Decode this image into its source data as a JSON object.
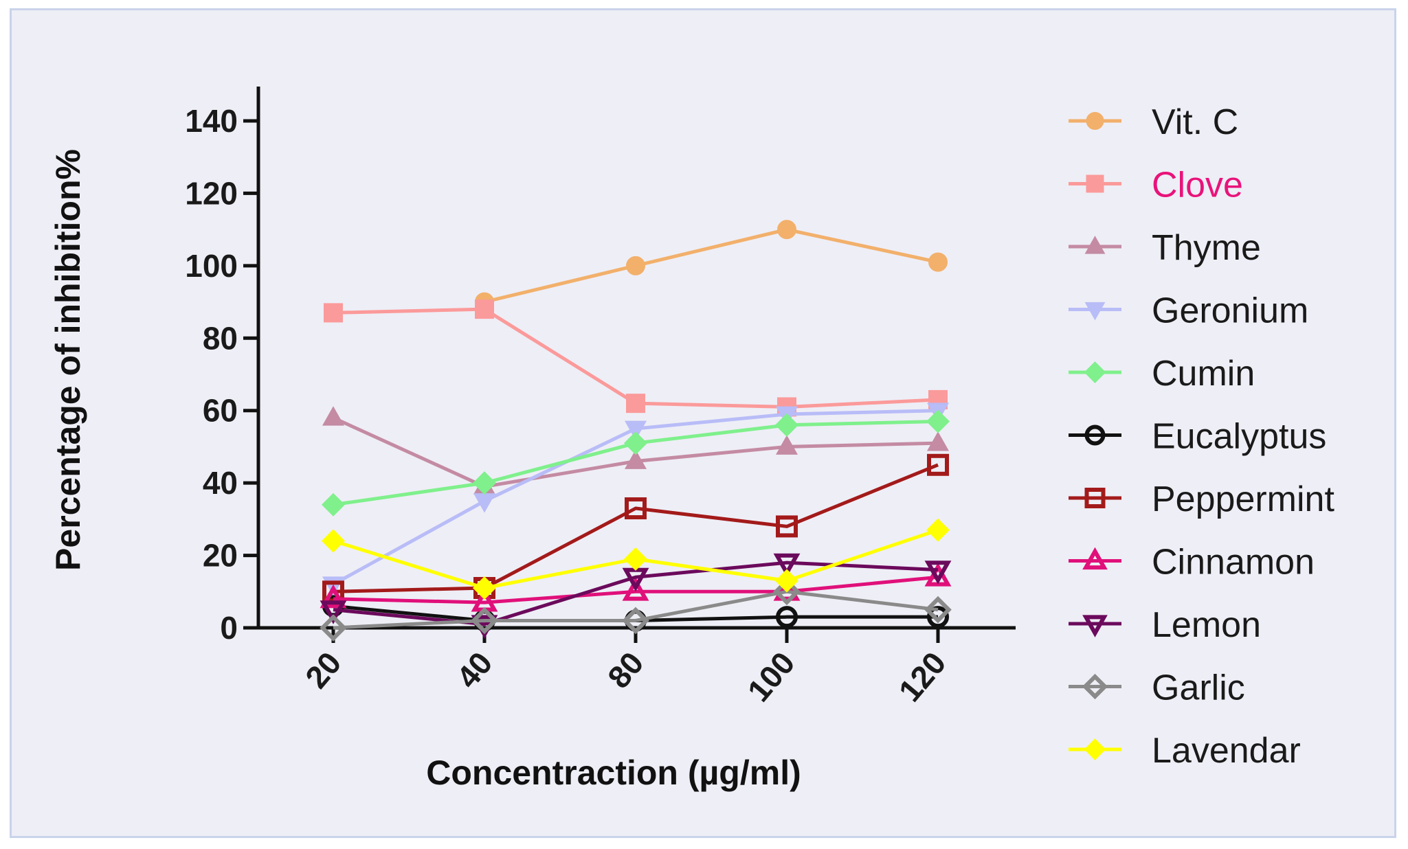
{
  "chart_data": {
    "type": "line",
    "title": "",
    "xlabel": "Concentraction (µg/ml)",
    "ylabel": "Percentage of inhibition%",
    "categories": [
      "20",
      "40",
      "80",
      "100",
      "120"
    ],
    "ylim": [
      0,
      140
    ],
    "yticks": [
      0,
      20,
      40,
      60,
      80,
      100,
      120,
      140
    ],
    "grid": false,
    "legend_position": "right",
    "series": [
      {
        "name": "Vit. C",
        "color": "#f2b06b",
        "marker": "circle",
        "filled": true,
        "label_color": "#1a1a1a",
        "values": [
          null,
          90,
          100,
          110,
          101
        ]
      },
      {
        "name": "Clove",
        "color": "#fb9a9a",
        "marker": "square",
        "filled": true,
        "label_color": "#e8137a",
        "values": [
          87,
          88,
          62,
          61,
          63
        ]
      },
      {
        "name": "Thyme",
        "color": "#c48ba3",
        "marker": "triangle",
        "filled": true,
        "label_color": "#1a1a1a",
        "values": [
          58,
          39,
          46,
          50,
          51
        ]
      },
      {
        "name": "Geronium",
        "color": "#b8bcf7",
        "marker": "triangle-down",
        "filled": true,
        "label_color": "#1a1a1a",
        "values": [
          12,
          35,
          55,
          59,
          60
        ]
      },
      {
        "name": "Cumin",
        "color": "#7ff08c",
        "marker": "diamond",
        "filled": true,
        "label_color": "#1a1a1a",
        "values": [
          34,
          40,
          51,
          56,
          57
        ]
      },
      {
        "name": "Eucalyptus",
        "color": "#111111",
        "marker": "circle",
        "filled": false,
        "label_color": "#1a1a1a",
        "values": [
          6,
          2,
          2,
          3,
          3
        ]
      },
      {
        "name": "Peppermint",
        "color": "#a31a1a",
        "marker": "square",
        "filled": false,
        "label_color": "#1a1a1a",
        "values": [
          10,
          11,
          33,
          28,
          45
        ]
      },
      {
        "name": "Cinnamon",
        "color": "#e0107a",
        "marker": "triangle",
        "filled": false,
        "label_color": "#1a1a1a",
        "values": [
          8,
          7,
          10,
          10,
          14
        ]
      },
      {
        "name": "Lemon",
        "color": "#6b0a5c",
        "marker": "triangle-down",
        "filled": false,
        "label_color": "#1a1a1a",
        "values": [
          5,
          1,
          14,
          18,
          16
        ]
      },
      {
        "name": "Garlic",
        "color": "#8a8a8a",
        "marker": "diamond",
        "filled": false,
        "label_color": "#1a1a1a",
        "values": [
          0,
          2,
          2,
          10,
          5
        ]
      },
      {
        "name": "Lavendar",
        "color": "#ffff00",
        "marker": "diamond",
        "filled": true,
        "label_color": "#1a1a1a",
        "values": [
          24,
          11,
          19,
          13,
          27
        ]
      }
    ]
  }
}
